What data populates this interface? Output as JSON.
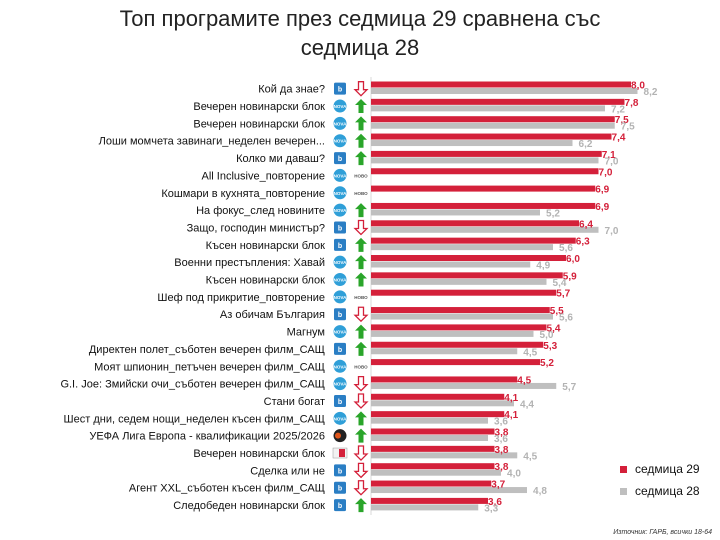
{
  "title": "Топ програмите през седмица 29 сравнена със\nседмица 28",
  "source": "Източник: ГАРБ, всички 18-64",
  "colors": {
    "current": "#d4203a",
    "previous": "#bfbfbf",
    "up": "#2aa52a",
    "down": "#d4203a"
  },
  "chart_data": {
    "type": "bar",
    "orientation": "horizontal",
    "xlim": [
      0,
      8.6
    ],
    "categories": [
      "Кой да знае?",
      "Вечерен новинарски блок",
      "Вечерен новинарски блок",
      "Лоши момчета завинаги_неделен вечерен...",
      "Колко ми даваш?",
      "All Inclusive_повторение",
      "Кошмари в кухнята_повторение",
      "На фокус_след новините",
      "Защо, господин министър?",
      "Късен новинарски блок",
      "Военни престъпления: Хавай",
      "Късен новинарски блок",
      "Шеф под прикритие_повторение",
      "Аз обичам България",
      "Магнум",
      "Директен полет_съботен вечерен филм_САЩ",
      "Моят шпионин_петъчен вечерен филм_САЩ",
      "G.I. Joe: Змийски очи_съботен вечерен филм_САЩ",
      "Стани богат",
      "Шест дни, седем нощи_неделен късен филм_САЩ",
      "УЕФА Лига Европа - квалификации 2025/2026",
      "Вечерен новинарски блок",
      "Сделка или не",
      "Агент XXL_съботен късен филм_САЩ",
      "Следобеден новинарски блок"
    ],
    "series": [
      {
        "name": "седмица 29",
        "values": [
          8.0,
          7.8,
          7.5,
          7.4,
          7.1,
          7.0,
          6.9,
          6.9,
          6.4,
          6.3,
          6.0,
          5.9,
          5.7,
          5.5,
          5.4,
          5.3,
          5.2,
          4.5,
          4.1,
          4.1,
          3.8,
          3.8,
          3.8,
          3.7,
          3.6
        ]
      },
      {
        "name": "седмица 28",
        "values": [
          8.2,
          7.2,
          7.5,
          6.2,
          7.0,
          null,
          null,
          5.2,
          7.0,
          5.6,
          4.9,
          5.4,
          null,
          5.6,
          5.0,
          4.5,
          null,
          5.7,
          4.4,
          3.6,
          3.6,
          4.5,
          4.0,
          4.8,
          3.3
        ]
      }
    ],
    "labels_current": [
      "8,0",
      "7,8",
      "7,5",
      "7,4",
      "7,1",
      "7,0",
      "6,9",
      "6,9",
      "6,4",
      "6,3",
      "6,0",
      "5,9",
      "5,7",
      "5,5",
      "5,4",
      "5,3",
      "5,2",
      "4,5",
      "4,1",
      "4,1",
      "3,8",
      "3,8",
      "3,8",
      "3,7",
      "3,6"
    ],
    "labels_previous": [
      "8,2",
      "7,2",
      "7,5",
      "6,2",
      "7,0",
      "",
      "",
      "5,2",
      "7,0",
      "5,6",
      "4,9",
      "5,4",
      "",
      "5,6",
      "5,0",
      "4,5",
      "",
      "5,7",
      "4,4",
      "3,6",
      "3,6",
      "4,5",
      "4,0",
      "4,8",
      "3,3"
    ],
    "channels": [
      "btv",
      "nova",
      "nova",
      "nova",
      "btv",
      "nova",
      "nova",
      "nova",
      "btv",
      "btv",
      "nova",
      "nova",
      "nova",
      "btv",
      "nova",
      "btv",
      "nova",
      "nova",
      "btv",
      "nova",
      "diema",
      "bulgaria-on-air",
      "btv",
      "btv",
      "btv"
    ],
    "trends": [
      "down",
      "up",
      "up",
      "up",
      "up",
      "new",
      "new",
      "up",
      "down",
      "up",
      "up",
      "up",
      "new",
      "down",
      "up",
      "up",
      "new",
      "down",
      "down",
      "up",
      "up",
      "down",
      "down",
      "down",
      "up"
    ]
  },
  "channel_logos": {
    "btv": "btv",
    "nova": "NOVA",
    "diema": "SPORT",
    "bulgaria-on-air": "ON AIR"
  },
  "new_label": "НОВО"
}
